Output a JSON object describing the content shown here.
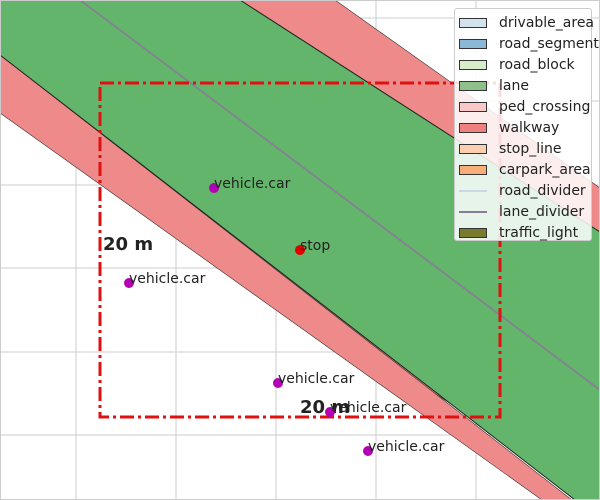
{
  "scale": {
    "vertical_label": "20 m",
    "horizontal_label": "20 m"
  },
  "markers": [
    {
      "label": "vehicle.car",
      "color": "#b400b4"
    },
    {
      "label": "stop",
      "color": "#e00000"
    },
    {
      "label": "vehicle.car",
      "color": "#b400b4"
    },
    {
      "label": "vehicle.car",
      "color": "#b400b4"
    },
    {
      "label": "vehicle.car",
      "color": "#b400b4"
    },
    {
      "label": "vehicle.car",
      "color": "#b400b4"
    }
  ],
  "legend": [
    {
      "label": "drivable_area",
      "color": "#d3e3ee",
      "kind": "patch"
    },
    {
      "label": "road_segment",
      "color": "#8bb8d6",
      "kind": "patch"
    },
    {
      "label": "road_block",
      "color": "#d7ecc8",
      "kind": "patch"
    },
    {
      "label": "lane",
      "color": "#8fc08a",
      "kind": "patch"
    },
    {
      "label": "ped_crossing",
      "color": "#f9c8c8",
      "kind": "patch"
    },
    {
      "label": "walkway",
      "color": "#ef8080",
      "kind": "patch"
    },
    {
      "label": "stop_line",
      "color": "#fbd0b0",
      "kind": "patch"
    },
    {
      "label": "carpark_area",
      "color": "#f8ae78",
      "kind": "patch"
    },
    {
      "label": "road_divider",
      "color": "#c9d8e8",
      "kind": "line"
    },
    {
      "label": "lane_divider",
      "color": "#8a7a9a",
      "kind": "line"
    },
    {
      "label": "traffic_light",
      "color": "#7a7a2e",
      "kind": "patch"
    }
  ],
  "colors": {
    "lane_fill": "#62b56a",
    "walkway_fill": "#ef8a8a",
    "ego_box": "#e01010",
    "grid": "#cccccc"
  }
}
